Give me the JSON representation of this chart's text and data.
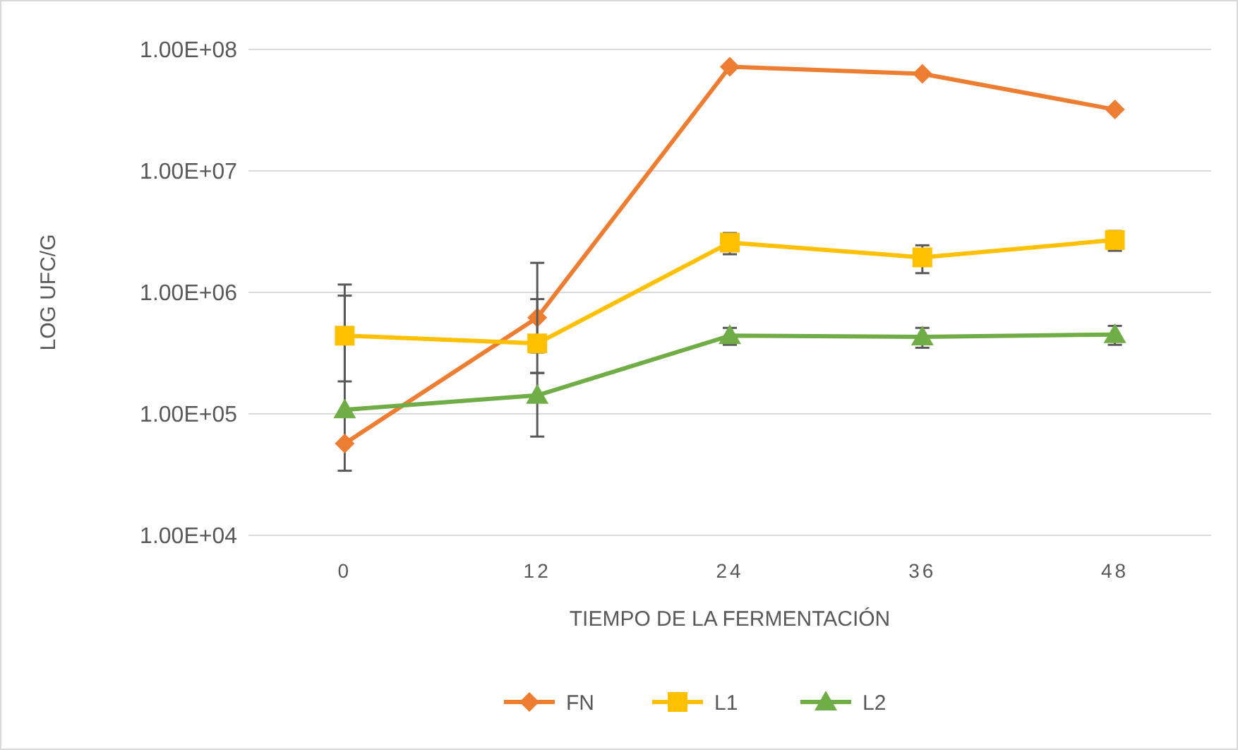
{
  "chart_data": {
    "type": "line",
    "xlabel": "TIEMPO DE LA FERMENTACIÓN",
    "ylabel": "LOG UFC/G",
    "categories": [
      "0",
      "12",
      "24",
      "36",
      "48"
    ],
    "log": true,
    "ylim": [
      10000,
      100000000
    ],
    "yticks": [
      {
        "value": 10000,
        "label": "1.00E+04"
      },
      {
        "value": 100000,
        "label": "1.00E+05"
      },
      {
        "value": 1000000,
        "label": "1.00E+06"
      },
      {
        "value": 10000000,
        "label": "1.00E+07"
      },
      {
        "value": 100000000,
        "label": "1.00E+08"
      }
    ],
    "grid": "y",
    "legend": "bottom",
    "series": [
      {
        "name": "FN",
        "color": "#ed7d31",
        "marker": "diamond",
        "values": [
          57000,
          620000,
          72000000,
          63000000,
          32000000
        ],
        "errors": [
          [
            34000,
            940000
          ],
          [
            217000,
            1750000
          ],
          null,
          null,
          null
        ]
      },
      {
        "name": "L1",
        "color": "#ffc000",
        "marker": "square",
        "values": [
          440000,
          380000,
          2570000,
          1940000,
          2700000
        ],
        "errors": [
          [
            185000,
            1160000
          ],
          [
            320000,
            880000
          ],
          [
            2060000,
            3080000
          ],
          [
            1440000,
            2440000
          ],
          [
            2200000,
            3200000
          ]
        ]
      },
      {
        "name": "L2",
        "color": "#70ad47",
        "marker": "triangle",
        "values": [
          108000,
          142000,
          440000,
          430000,
          450000
        ],
        "errors": [
          null,
          [
            65000,
            217000
          ],
          [
            370000,
            510000
          ],
          [
            350000,
            510000
          ],
          [
            370000,
            530000
          ]
        ]
      }
    ]
  }
}
